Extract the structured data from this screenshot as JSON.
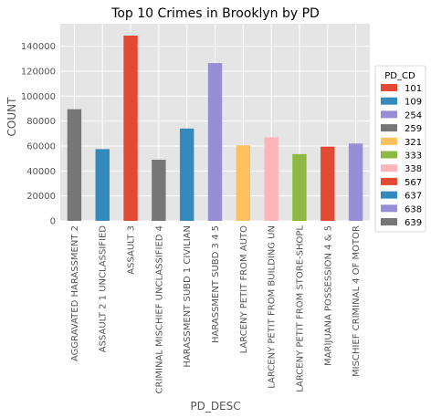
{
  "chart_data": {
    "type": "bar",
    "title": "Top 10 Crimes in Brooklyn by PD",
    "xlabel": "PD_DESC",
    "ylabel": "COUNT",
    "ylim": [
      0,
      158000
    ],
    "yticks": [
      0,
      20000,
      40000,
      60000,
      80000,
      100000,
      120000,
      140000
    ],
    "grid": true,
    "legend_position": "right",
    "legend_title": "PD_CD",
    "legend": [
      {
        "code": "101",
        "color": "#E24A33"
      },
      {
        "code": "109",
        "color": "#348ABD"
      },
      {
        "code": "254",
        "color": "#988ED5"
      },
      {
        "code": "259",
        "color": "#777777"
      },
      {
        "code": "321",
        "color": "#FBC15E"
      },
      {
        "code": "333",
        "color": "#8EBA42"
      },
      {
        "code": "338",
        "color": "#FFB5B8"
      },
      {
        "code": "567",
        "color": "#E24A33"
      },
      {
        "code": "637",
        "color": "#348ABD"
      },
      {
        "code": "638",
        "color": "#988ED5"
      },
      {
        "code": "639",
        "color": "#777777"
      }
    ],
    "categories": [
      "AGGRAVATED HARASSMENT 2",
      "ASSAULT 2 1 UNCLASSIFIED",
      "ASSAULT 3",
      "CRIMINAL MISCHIEF UNCLASSIFIED 4",
      "HARASSMENT SUBD 1 CIVILIAN",
      "HARASSMENT SUBD 3 4 5",
      "LARCENY PETIT FROM AUTO",
      "LARCENY PETIT FROM BUILDING UN",
      "LARCENY PETIT FROM STORE-SHOPL",
      "MARIJUANA  POSSESSION 4 & 5",
      "MISCHIEF  CRIMINAL 4  OF MOTOR"
    ],
    "values": [
      89500,
      57500,
      148500,
      49000,
      74000,
      126500,
      60500,
      67000,
      53500,
      59500,
      62000
    ],
    "bar_colors": [
      "#777777",
      "#348ABD",
      "#E24A33",
      "#777777",
      "#348ABD",
      "#988ED5",
      "#FBC15E",
      "#FFB5B8",
      "#8EBA42",
      "#E24A33",
      "#988ED5"
    ]
  }
}
